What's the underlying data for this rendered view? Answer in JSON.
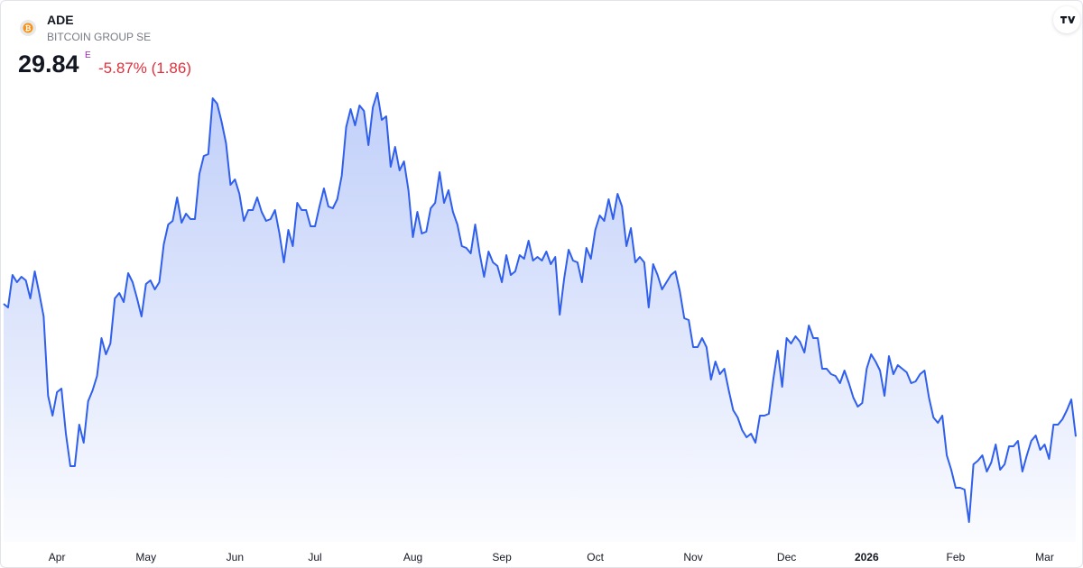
{
  "header": {
    "symbol": "ADE",
    "name": "BITCOIN GROUP SE",
    "price": "29.84",
    "exchange_flag": "E",
    "change": "-5.87% (1.86)"
  },
  "chart_data": {
    "type": "area",
    "color": "#2f5fec",
    "values": [
      37.2,
      37.0,
      38.8,
      38.4,
      38.7,
      38.5,
      37.5,
      39.0,
      37.8,
      36.5,
      32.1,
      31.0,
      32.3,
      32.5,
      30.0,
      28.2,
      28.2,
      30.5,
      29.5,
      31.8,
      32.4,
      33.2,
      35.3,
      34.4,
      35.0,
      37.5,
      37.8,
      37.3,
      38.9,
      38.4,
      37.5,
      36.5,
      38.3,
      38.5,
      38.0,
      38.4,
      40.5,
      41.6,
      41.8,
      43.1,
      41.7,
      42.2,
      41.9,
      41.9,
      44.4,
      45.4,
      45.5,
      48.6,
      48.3,
      47.3,
      46.1,
      43.8,
      44.1,
      43.3,
      41.8,
      42.4,
      42.4,
      43.1,
      42.3,
      41.8,
      41.9,
      42.4,
      41.1,
      39.5,
      41.3,
      40.4,
      42.8,
      42.4,
      42.4,
      41.5,
      41.5,
      42.6,
      43.6,
      42.6,
      42.5,
      43.0,
      44.3,
      47.0,
      48.0,
      47.1,
      48.2,
      47.9,
      46.0,
      48.1,
      48.9,
      47.4,
      47.6,
      44.8,
      45.9,
      44.6,
      45.1,
      43.5,
      40.9,
      42.3,
      41.1,
      41.2,
      42.5,
      42.8,
      44.5,
      42.8,
      43.5,
      42.3,
      41.6,
      40.4,
      40.3,
      40.0,
      41.6,
      40.0,
      38.7,
      40.1,
      39.5,
      39.3,
      38.4,
      39.9,
      38.8,
      39.0,
      39.9,
      39.7,
      40.7,
      39.6,
      39.8,
      39.6,
      40.1,
      39.4,
      39.8,
      36.6,
      38.6,
      40.2,
      39.6,
      39.5,
      38.4,
      40.3,
      39.7,
      41.3,
      42.1,
      41.8,
      43.0,
      41.9,
      43.3,
      42.6,
      40.4,
      41.4,
      39.5,
      39.8,
      39.5,
      37.0,
      39.4,
      38.8,
      38.0,
      38.4,
      38.8,
      39.0,
      37.9,
      36.4,
      36.3,
      34.8,
      34.8,
      35.3,
      34.8,
      33.0,
      34.0,
      33.3,
      33.6,
      32.4,
      31.3,
      30.9,
      30.2,
      29.8,
      30.0,
      29.5,
      31.0,
      31.0,
      31.1,
      33.0,
      34.6,
      32.6,
      35.3,
      35.0,
      35.4,
      35.1,
      34.5,
      36.0,
      35.3,
      35.3,
      33.6,
      33.6,
      33.3,
      33.2,
      32.8,
      33.5,
      32.8,
      32.0,
      31.5,
      31.7,
      33.6,
      34.4,
      34.0,
      33.5,
      32.1,
      34.3,
      33.3,
      33.8,
      33.6,
      33.4,
      32.8,
      32.9,
      33.3,
      33.5,
      32.0,
      30.9,
      30.6,
      31.0,
      28.8,
      28.0,
      27.0,
      27.0,
      26.9,
      25.1,
      28.3,
      28.5,
      28.8,
      27.9,
      28.4,
      29.4,
      28.0,
      28.3,
      29.3,
      29.3,
      29.6,
      27.9,
      28.8,
      29.6,
      29.9,
      29.1,
      29.4,
      28.6,
      30.5,
      30.5,
      30.8,
      31.3,
      31.9,
      29.84
    ],
    "xlim": [
      0,
      241
    ],
    "xticks": [
      {
        "value": 12,
        "label": "Apr"
      },
      {
        "value": 32,
        "label": "May"
      },
      {
        "value": 52,
        "label": "Jun"
      },
      {
        "value": 70,
        "label": "Jul"
      },
      {
        "value": 92,
        "label": "Aug"
      },
      {
        "value": 112,
        "label": "Sep"
      },
      {
        "value": 133,
        "label": "Oct"
      },
      {
        "value": 155,
        "label": "Nov"
      },
      {
        "value": 176,
        "label": "Dec"
      },
      {
        "value": 194,
        "label": "2026",
        "bold": true
      },
      {
        "value": 214,
        "label": "Feb"
      },
      {
        "value": 234,
        "label": "Mar"
      }
    ],
    "ylim": [
      24,
      54
    ]
  }
}
